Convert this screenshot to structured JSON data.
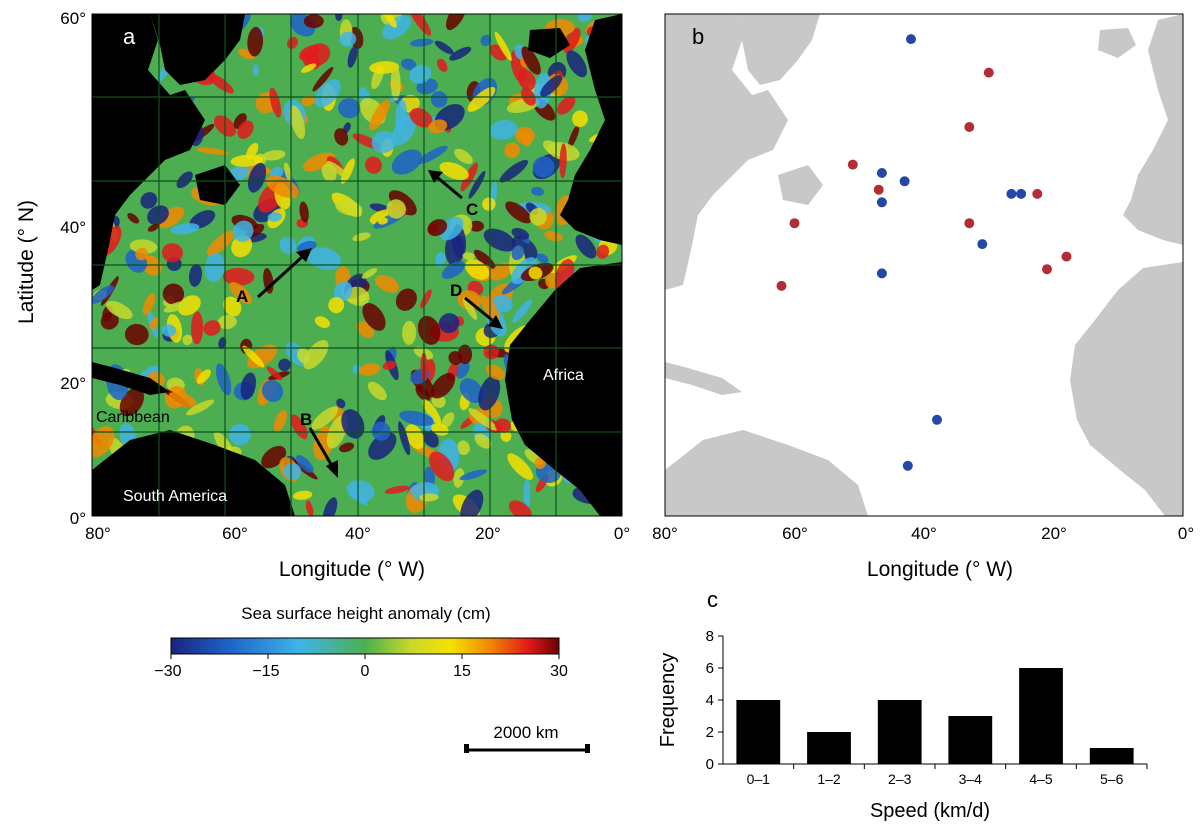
{
  "panel_a": {
    "letter": "a",
    "xlabel": "Longitude (° W)",
    "ylabel": "Latitude (° N)",
    "x_ticks": [
      "80°",
      "60°",
      "40°",
      "20°",
      "0°"
    ],
    "y_ticks": [
      "60°",
      "40°",
      "20°",
      "0°"
    ],
    "place_labels": {
      "caribbean": "Caribbean",
      "south_america": "South America",
      "africa": "Africa"
    },
    "arrow_labels": [
      "A",
      "B",
      "C",
      "D"
    ],
    "colorbar": {
      "title": "Sea surface height anomaly (cm)",
      "ticks": [
        "−30",
        "−15",
        "0",
        "15",
        "30"
      ],
      "colors": [
        "#1a237e",
        "#1e63c8",
        "#3fb4e8",
        "#4caf50",
        "#c8d92a",
        "#f5e100",
        "#f08a00",
        "#e31a1c",
        "#6b0000"
      ]
    },
    "scale_bar": "2000 km"
  },
  "panel_b": {
    "letter": "b",
    "xlabel": "Longitude (° W)",
    "x_ticks": [
      "80°",
      "60°",
      "40°",
      "20°",
      "0°"
    ],
    "point_colors": {
      "red": "#b22d35",
      "blue": "#2547a8"
    }
  },
  "chart_data": [
    {
      "type": "scatter",
      "panel": "b",
      "xlabel": "Longitude (° W)",
      "xlim": [
        80,
        0
      ],
      "ylim": [
        0,
        60
      ],
      "series": [
        {
          "color": "#b22d35",
          "points": [
            {
              "x": 30.0,
              "y": 53.0
            },
            {
              "x": 33.0,
              "y": 46.5
            },
            {
              "x": 51.0,
              "y": 42.0
            },
            {
              "x": 47.0,
              "y": 39.0
            },
            {
              "x": 60.0,
              "y": 35.0
            },
            {
              "x": 33.0,
              "y": 35.0
            },
            {
              "x": 22.5,
              "y": 38.5
            },
            {
              "x": 18.0,
              "y": 31.0
            },
            {
              "x": 21.0,
              "y": 29.5
            },
            {
              "x": 62.0,
              "y": 27.5
            }
          ]
        },
        {
          "color": "#2547a8",
          "points": [
            {
              "x": 42.0,
              "y": 57.0
            },
            {
              "x": 46.5,
              "y": 41.0
            },
            {
              "x": 43.0,
              "y": 40.0
            },
            {
              "x": 46.5,
              "y": 37.5
            },
            {
              "x": 26.5,
              "y": 38.5
            },
            {
              "x": 25.0,
              "y": 38.5
            },
            {
              "x": 31.0,
              "y": 32.5
            },
            {
              "x": 46.5,
              "y": 29.0
            },
            {
              "x": 38.0,
              "y": 11.5
            },
            {
              "x": 42.5,
              "y": 6.0
            }
          ]
        }
      ]
    },
    {
      "type": "bar",
      "panel": "c",
      "title": "c",
      "xlabel": "Speed (km/d)",
      "ylabel": "Frequency",
      "categories": [
        "0–1",
        "1–2",
        "2–3",
        "3–4",
        "4–5",
        "5–6"
      ],
      "values": [
        4,
        2,
        4,
        3,
        6,
        1
      ],
      "ylim": [
        0,
        8
      ],
      "yticks": [
        0,
        2,
        4,
        6,
        8
      ]
    }
  ]
}
